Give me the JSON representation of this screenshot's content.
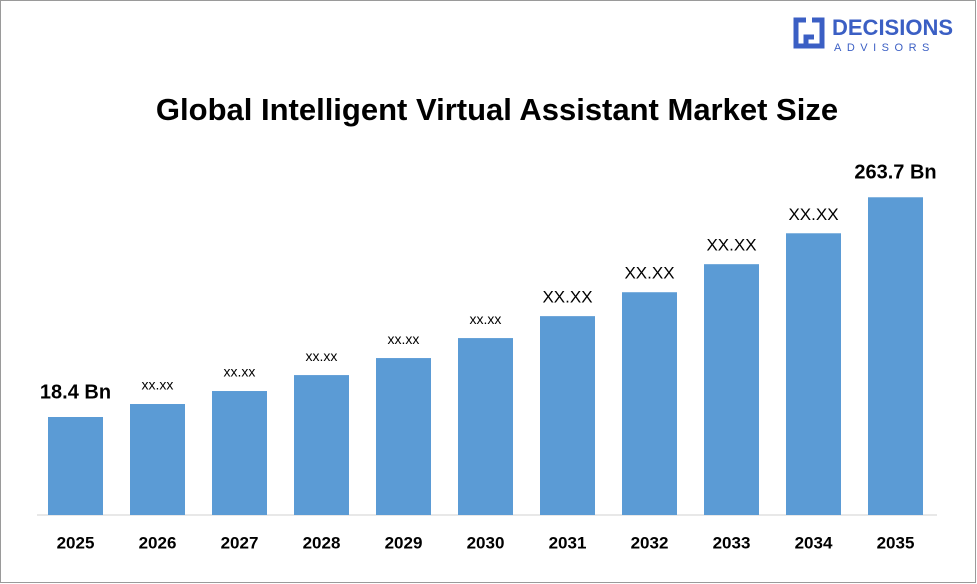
{
  "logo": {
    "name": "DECISIONS",
    "tagline": "ADVISORS"
  },
  "chart_data": {
    "type": "bar",
    "title": "Global Intelligent Virtual Assistant Market Size",
    "categories": [
      "2025",
      "2026",
      "2027",
      "2028",
      "2029",
      "2030",
      "2031",
      "2032",
      "2033",
      "2034",
      "2035"
    ],
    "values": [
      18.4,
      32.9,
      47.4,
      65.2,
      84.2,
      106.5,
      131,
      157.7,
      189,
      223.5,
      263.7
    ],
    "value_labels": [
      "18.4 Bn",
      "xx.xx",
      "xx.xx",
      "xx.xx",
      "xx.xx",
      "xx.xx",
      "XX.XX",
      "XX.XX",
      "XX.XX",
      "XX.XX",
      "263.7 Bn"
    ],
    "color": "#5b9bd5",
    "ylim": [
      -91,
      264
    ]
  }
}
